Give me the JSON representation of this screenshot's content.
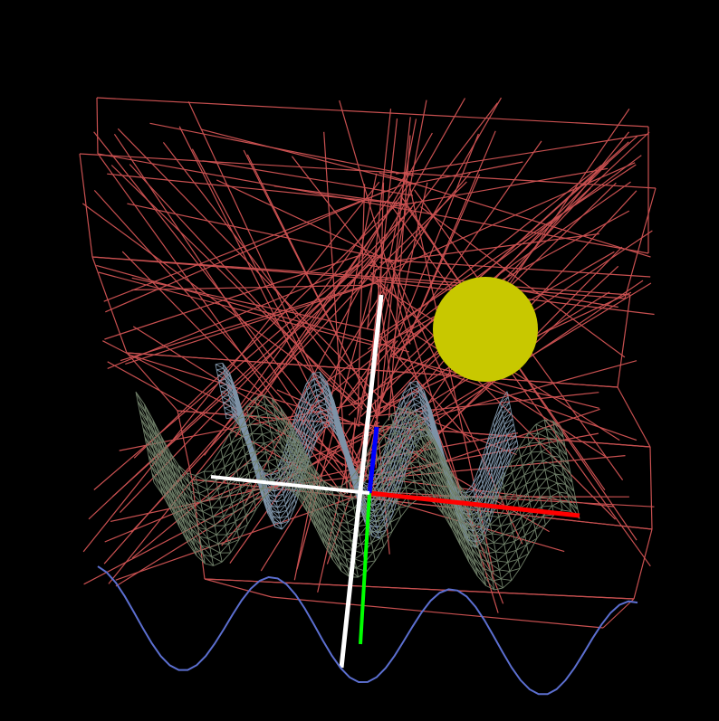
{
  "viewport": {
    "background": "#000000"
  },
  "scene": {
    "objects": [
      {
        "name": "red-wireframe-cage",
        "kind": "line-wireframe",
        "color": "#c85050"
      },
      {
        "name": "yellow-sphere",
        "kind": "sphere",
        "color": "#c8c800"
      },
      {
        "name": "blue-grey-wave-surface",
        "kind": "mesh-wireframe",
        "color": "#7e93a7"
      },
      {
        "name": "green-grey-wave-surface",
        "kind": "mesh-wireframe",
        "color": "#6f7f68"
      },
      {
        "name": "blue-sine-curve",
        "kind": "polyline",
        "color": "#5c6fd0"
      }
    ],
    "axes": {
      "x_color": "#ff0000",
      "y_color": "#00ff00",
      "z_color": "#0000ff",
      "overlay_axes_color": "#ffffff"
    }
  }
}
